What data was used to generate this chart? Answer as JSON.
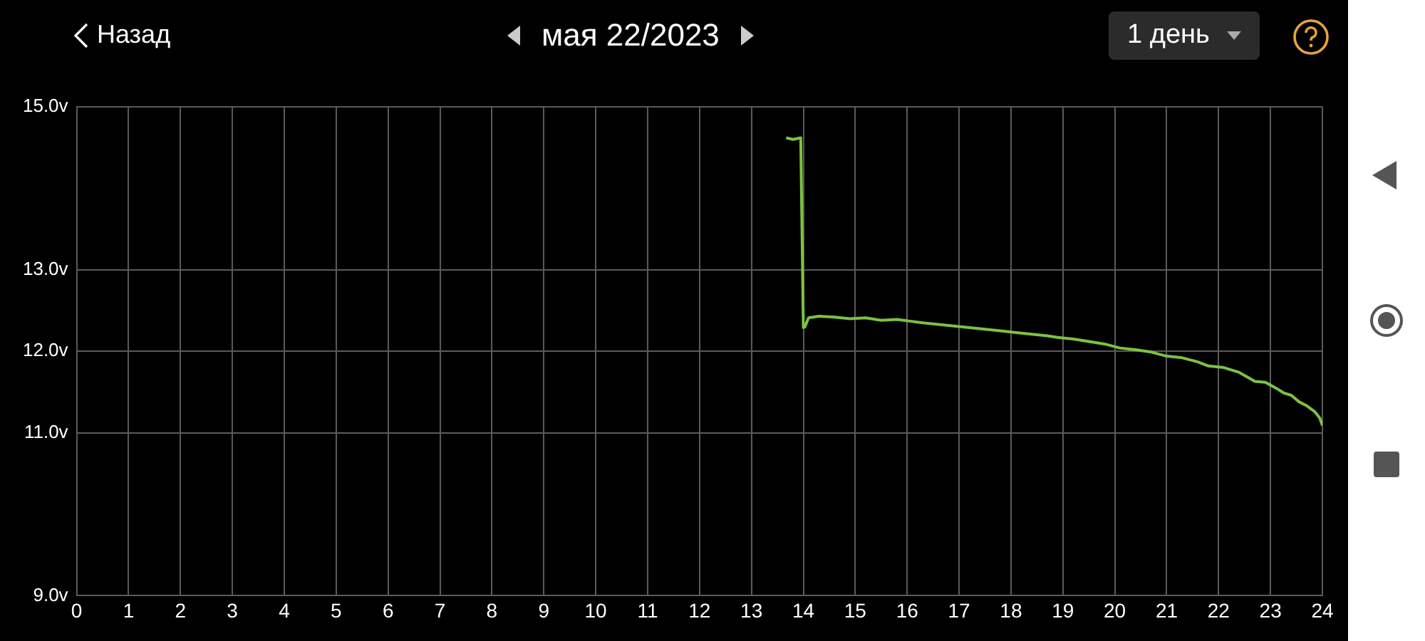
{
  "chart_data": {
    "type": "line",
    "title": "мая 22/2023",
    "annotations": [
      "Назад",
      "1 день"
    ],
    "x": [
      13.67,
      13.8,
      13.95,
      14.0,
      14.03,
      14.1,
      14.3,
      14.6,
      14.9,
      15.2,
      15.5,
      15.8,
      16.05,
      16.3,
      16.6,
      16.9,
      17.2,
      17.5,
      17.8,
      18.1,
      18.4,
      18.7,
      18.9,
      19.2,
      19.5,
      19.8,
      20.1,
      20.4,
      20.7,
      21.0,
      21.3,
      21.6,
      21.8,
      22.1,
      22.4,
      22.7,
      22.9,
      23.1,
      23.25,
      23.4,
      23.55,
      23.7,
      23.85,
      23.95,
      24.0
    ],
    "series": [
      {
        "color": "#7cc242",
        "values": [
          14.62,
          14.6,
          14.62,
          12.29,
          12.3,
          12.41,
          12.43,
          12.42,
          12.4,
          12.41,
          12.38,
          12.39,
          12.37,
          12.35,
          12.33,
          12.31,
          12.29,
          12.27,
          12.25,
          12.23,
          12.21,
          12.19,
          12.17,
          12.15,
          12.12,
          12.09,
          12.04,
          12.02,
          11.99,
          11.94,
          11.92,
          11.87,
          11.82,
          11.8,
          11.74,
          11.63,
          11.62,
          11.55,
          11.49,
          11.46,
          11.38,
          11.33,
          11.26,
          11.18,
          11.09
        ]
      }
    ],
    "xlim": [
      0,
      24
    ],
    "xticks": [
      0,
      1,
      2,
      3,
      4,
      5,
      6,
      7,
      8,
      9,
      10,
      11,
      12,
      13,
      14,
      15,
      16,
      17,
      18,
      19,
      20,
      21,
      22,
      23,
      24
    ],
    "ylim": [
      9,
      15
    ],
    "yticks": [
      {
        "value": 9,
        "label": "9.0v"
      },
      {
        "value": 11,
        "label": "11.0v"
      },
      {
        "value": 12,
        "label": "12.0v"
      },
      {
        "value": 13,
        "label": "13.0v"
      },
      {
        "value": 15,
        "label": "15.0v"
      }
    ],
    "grid": true,
    "legend": false,
    "marker": "none",
    "line_style": "solid"
  }
}
